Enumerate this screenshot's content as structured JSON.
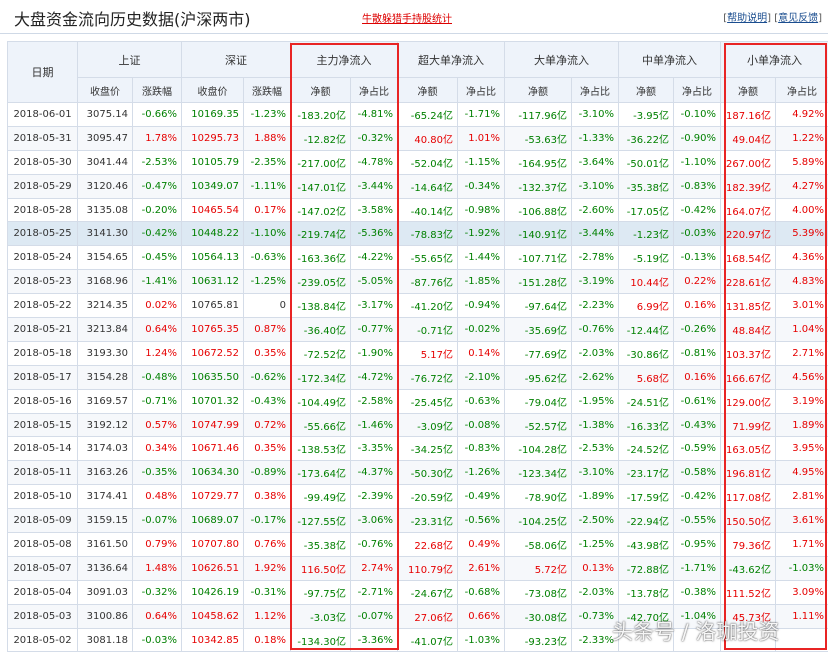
{
  "header": {
    "title": "大盘资金流向历史数据(沪深两市)",
    "center_link": "牛散躲猎手持股统计",
    "help_link": "帮助说明",
    "feedback_link": "意见反馈"
  },
  "table": {
    "date_header": "日期",
    "groups": [
      "上证",
      "深证",
      "主力净流入",
      "超大单净流入",
      "大单净流入",
      "中单净流入",
      "小单净流入"
    ],
    "sub_close": "收盘价",
    "sub_change": "涨跌幅",
    "sub_amount": "净额",
    "sub_ratio": "净占比",
    "rows": [
      {
        "date": "2018-06-01",
        "sh": "3075.14",
        "shc": "-0.66%",
        "sz": "10169.35",
        "szc": "-1.23%",
        "m": "-183.20亿",
        "mr": "-4.81%",
        "s": "-65.24亿",
        "sr": "-1.71%",
        "l": "-117.96亿",
        "lr": "-3.10%",
        "d": "-3.95亿",
        "dr": "-0.10%",
        "x": "187.16亿",
        "xr": "4.92%"
      },
      {
        "date": "2018-05-31",
        "sh": "3095.47",
        "shc": "1.78%",
        "sz": "10295.73",
        "szc": "1.88%",
        "m": "-12.82亿",
        "mr": "-0.32%",
        "s": "40.80亿",
        "sr": "1.01%",
        "l": "-53.63亿",
        "lr": "-1.33%",
        "d": "-36.22亿",
        "dr": "-0.90%",
        "x": "49.04亿",
        "xr": "1.22%"
      },
      {
        "date": "2018-05-30",
        "sh": "3041.44",
        "shc": "-2.53%",
        "sz": "10105.79",
        "szc": "-2.35%",
        "m": "-217.00亿",
        "mr": "-4.78%",
        "s": "-52.04亿",
        "sr": "-1.15%",
        "l": "-164.95亿",
        "lr": "-3.64%",
        "d": "-50.01亿",
        "dr": "-1.10%",
        "x": "267.00亿",
        "xr": "5.89%"
      },
      {
        "date": "2018-05-29",
        "sh": "3120.46",
        "shc": "-0.47%",
        "sz": "10349.07",
        "szc": "-1.11%",
        "m": "-147.01亿",
        "mr": "-3.44%",
        "s": "-14.64亿",
        "sr": "-0.34%",
        "l": "-132.37亿",
        "lr": "-3.10%",
        "d": "-35.38亿",
        "dr": "-0.83%",
        "x": "182.39亿",
        "xr": "4.27%"
      },
      {
        "date": "2018-05-28",
        "sh": "3135.08",
        "shc": "-0.20%",
        "sz": "10465.54",
        "szc": "0.17%",
        "m": "-147.02亿",
        "mr": "-3.58%",
        "s": "-40.14亿",
        "sr": "-0.98%",
        "l": "-106.88亿",
        "lr": "-2.60%",
        "d": "-17.05亿",
        "dr": "-0.42%",
        "x": "164.07亿",
        "xr": "4.00%"
      },
      {
        "date": "2018-05-25",
        "sh": "3141.30",
        "shc": "-0.42%",
        "sz": "10448.22",
        "szc": "-1.10%",
        "m": "-219.74亿",
        "mr": "-5.36%",
        "s": "-78.83亿",
        "sr": "-1.92%",
        "l": "-140.91亿",
        "lr": "-3.44%",
        "d": "-1.23亿",
        "dr": "-0.03%",
        "x": "220.97亿",
        "xr": "5.39%"
      },
      {
        "date": "2018-05-24",
        "sh": "3154.65",
        "shc": "-0.45%",
        "sz": "10564.13",
        "szc": "-0.63%",
        "m": "-163.36亿",
        "mr": "-4.22%",
        "s": "-55.65亿",
        "sr": "-1.44%",
        "l": "-107.71亿",
        "lr": "-2.78%",
        "d": "-5.19亿",
        "dr": "-0.13%",
        "x": "168.54亿",
        "xr": "4.36%"
      },
      {
        "date": "2018-05-23",
        "sh": "3168.96",
        "shc": "-1.41%",
        "sz": "10631.12",
        "szc": "-1.25%",
        "m": "-239.05亿",
        "mr": "-5.05%",
        "s": "-87.76亿",
        "sr": "-1.85%",
        "l": "-151.28亿",
        "lr": "-3.19%",
        "d": "10.44亿",
        "dr": "0.22%",
        "x": "228.61亿",
        "xr": "4.83%"
      },
      {
        "date": "2018-05-22",
        "sh": "3214.35",
        "shc": "0.02%",
        "sz": "10765.81",
        "szc": "0",
        "m": "-138.84亿",
        "mr": "-3.17%",
        "s": "-41.20亿",
        "sr": "-0.94%",
        "l": "-97.64亿",
        "lr": "-2.23%",
        "d": "6.99亿",
        "dr": "0.16%",
        "x": "131.85亿",
        "xr": "3.01%"
      },
      {
        "date": "2018-05-21",
        "sh": "3213.84",
        "shc": "0.64%",
        "sz": "10765.35",
        "szc": "0.87%",
        "m": "-36.40亿",
        "mr": "-0.77%",
        "s": "-0.71亿",
        "sr": "-0.02%",
        "l": "-35.69亿",
        "lr": "-0.76%",
        "d": "-12.44亿",
        "dr": "-0.26%",
        "x": "48.84亿",
        "xr": "1.04%"
      },
      {
        "date": "2018-05-18",
        "sh": "3193.30",
        "shc": "1.24%",
        "sz": "10672.52",
        "szc": "0.35%",
        "m": "-72.52亿",
        "mr": "-1.90%",
        "s": "5.17亿",
        "sr": "0.14%",
        "l": "-77.69亿",
        "lr": "-2.03%",
        "d": "-30.86亿",
        "dr": "-0.81%",
        "x": "103.37亿",
        "xr": "2.71%"
      },
      {
        "date": "2018-05-17",
        "sh": "3154.28",
        "shc": "-0.48%",
        "sz": "10635.50",
        "szc": "-0.62%",
        "m": "-172.34亿",
        "mr": "-4.72%",
        "s": "-76.72亿",
        "sr": "-2.10%",
        "l": "-95.62亿",
        "lr": "-2.62%",
        "d": "5.68亿",
        "dr": "0.16%",
        "x": "166.67亿",
        "xr": "4.56%"
      },
      {
        "date": "2018-05-16",
        "sh": "3169.57",
        "shc": "-0.71%",
        "sz": "10701.32",
        "szc": "-0.43%",
        "m": "-104.49亿",
        "mr": "-2.58%",
        "s": "-25.45亿",
        "sr": "-0.63%",
        "l": "-79.04亿",
        "lr": "-1.95%",
        "d": "-24.51亿",
        "dr": "-0.61%",
        "x": "129.00亿",
        "xr": "3.19%"
      },
      {
        "date": "2018-05-15",
        "sh": "3192.12",
        "shc": "0.57%",
        "sz": "10747.99",
        "szc": "0.72%",
        "m": "-55.66亿",
        "mr": "-1.46%",
        "s": "-3.09亿",
        "sr": "-0.08%",
        "l": "-52.57亿",
        "lr": "-1.38%",
        "d": "-16.33亿",
        "dr": "-0.43%",
        "x": "71.99亿",
        "xr": "1.89%"
      },
      {
        "date": "2018-05-14",
        "sh": "3174.03",
        "shc": "0.34%",
        "sz": "10671.46",
        "szc": "0.35%",
        "m": "-138.53亿",
        "mr": "-3.35%",
        "s": "-34.25亿",
        "sr": "-0.83%",
        "l": "-104.28亿",
        "lr": "-2.53%",
        "d": "-24.52亿",
        "dr": "-0.59%",
        "x": "163.05亿",
        "xr": "3.95%"
      },
      {
        "date": "2018-05-11",
        "sh": "3163.26",
        "shc": "-0.35%",
        "sz": "10634.30",
        "szc": "-0.89%",
        "m": "-173.64亿",
        "mr": "-4.37%",
        "s": "-50.30亿",
        "sr": "-1.26%",
        "l": "-123.34亿",
        "lr": "-3.10%",
        "d": "-23.17亿",
        "dr": "-0.58%",
        "x": "196.81亿",
        "xr": "4.95%"
      },
      {
        "date": "2018-05-10",
        "sh": "3174.41",
        "shc": "0.48%",
        "sz": "10729.77",
        "szc": "0.38%",
        "m": "-99.49亿",
        "mr": "-2.39%",
        "s": "-20.59亿",
        "sr": "-0.49%",
        "l": "-78.90亿",
        "lr": "-1.89%",
        "d": "-17.59亿",
        "dr": "-0.42%",
        "x": "117.08亿",
        "xr": "2.81%"
      },
      {
        "date": "2018-05-09",
        "sh": "3159.15",
        "shc": "-0.07%",
        "sz": "10689.07",
        "szc": "-0.17%",
        "m": "-127.55亿",
        "mr": "-3.06%",
        "s": "-23.31亿",
        "sr": "-0.56%",
        "l": "-104.25亿",
        "lr": "-2.50%",
        "d": "-22.94亿",
        "dr": "-0.55%",
        "x": "150.50亿",
        "xr": "3.61%"
      },
      {
        "date": "2018-05-08",
        "sh": "3161.50",
        "shc": "0.79%",
        "sz": "10707.80",
        "szc": "0.76%",
        "m": "-35.38亿",
        "mr": "-0.76%",
        "s": "22.68亿",
        "sr": "0.49%",
        "l": "-58.06亿",
        "lr": "-1.25%",
        "d": "-43.98亿",
        "dr": "-0.95%",
        "x": "79.36亿",
        "xr": "1.71%"
      },
      {
        "date": "2018-05-07",
        "sh": "3136.64",
        "shc": "1.48%",
        "sz": "10626.51",
        "szc": "1.92%",
        "m": "116.50亿",
        "mr": "2.74%",
        "s": "110.79亿",
        "sr": "2.61%",
        "l": "5.72亿",
        "lr": "0.13%",
        "d": "-72.88亿",
        "dr": "-1.71%",
        "x": "-43.62亿",
        "xr": "-1.03%"
      },
      {
        "date": "2018-05-04",
        "sh": "3091.03",
        "shc": "-0.32%",
        "sz": "10426.19",
        "szc": "-0.31%",
        "m": "-97.75亿",
        "mr": "-2.71%",
        "s": "-24.67亿",
        "sr": "-0.68%",
        "l": "-73.08亿",
        "lr": "-2.03%",
        "d": "-13.78亿",
        "dr": "-0.38%",
        "x": "111.52亿",
        "xr": "3.09%"
      },
      {
        "date": "2018-05-03",
        "sh": "3100.86",
        "shc": "0.64%",
        "sz": "10458.62",
        "szc": "1.12%",
        "m": "-3.03亿",
        "mr": "-0.07%",
        "s": "27.06亿",
        "sr": "0.66%",
        "l": "-30.08亿",
        "lr": "-0.73%",
        "d": "-42.70亿",
        "dr": "-1.04%",
        "x": "45.73亿",
        "xr": "1.11%"
      },
      {
        "date": "2018-05-02",
        "sh": "3081.18",
        "shc": "-0.03%",
        "sz": "10342.85",
        "szc": "0.18%",
        "m": "-134.30亿",
        "mr": "-3.36%",
        "s": "-41.07亿",
        "sr": "-1.03%",
        "l": "-93.23亿",
        "lr": "-2.33%",
        "d": "",
        "dr": "",
        "x": "",
        "xr": ""
      }
    ]
  },
  "watermark": "头条号 / 洛珈投资",
  "colors": {
    "up": "#e60000",
    "down": "#008000",
    "box": "#e82424",
    "header_bg": "#eef3fa",
    "highlight_row": "#dde9f3"
  }
}
